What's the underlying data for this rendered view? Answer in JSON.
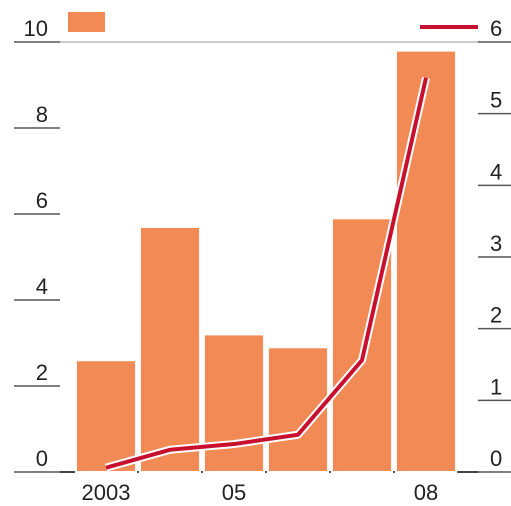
{
  "chart_data": {
    "type": "bar_line",
    "categories": [
      "2003",
      null,
      "05",
      null,
      null,
      "08"
    ],
    "series": [
      {
        "type": "bar",
        "color": "#f28a55",
        "values": [
          2.6,
          5.7,
          3.2,
          2.9,
          5.9,
          9.8
        ]
      },
      {
        "type": "line",
        "axis": "y2",
        "color": "#c8102e",
        "values": [
          0.06,
          0.31,
          0.39,
          0.52,
          1.56,
          5.5
        ]
      }
    ],
    "ylim": [
      0,
      10
    ],
    "yticks": [
      0,
      2,
      4,
      6,
      8,
      10
    ],
    "y2lim": [
      0,
      6
    ],
    "y2ticks": [
      0,
      1,
      2,
      3,
      4,
      5,
      6
    ]
  }
}
